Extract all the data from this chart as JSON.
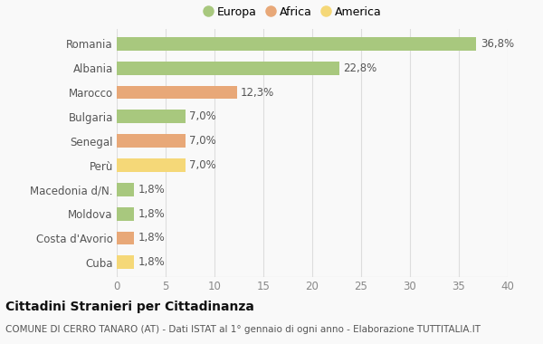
{
  "categories": [
    "Romania",
    "Albania",
    "Marocco",
    "Bulgaria",
    "Senegal",
    "Perù",
    "Macedonia d/N.",
    "Moldova",
    "Costa d'Avorio",
    "Cuba"
  ],
  "values": [
    36.8,
    22.8,
    12.3,
    7.0,
    7.0,
    7.0,
    1.8,
    1.8,
    1.8,
    1.8
  ],
  "labels": [
    "36,8%",
    "22,8%",
    "12,3%",
    "7,0%",
    "7,0%",
    "7,0%",
    "1,8%",
    "1,8%",
    "1,8%",
    "1,8%"
  ],
  "colors": [
    "#a8c87e",
    "#a8c87e",
    "#e8a878",
    "#a8c87e",
    "#e8a878",
    "#f5d878",
    "#a8c87e",
    "#a8c87e",
    "#e8a878",
    "#f5d878"
  ],
  "legend": [
    {
      "label": "Europa",
      "color": "#a8c87e"
    },
    {
      "label": "Africa",
      "color": "#e8a878"
    },
    {
      "label": "America",
      "color": "#f5d878"
    }
  ],
  "title": "Cittadini Stranieri per Cittadinanza",
  "subtitle": "COMUNE DI CERRO TANARO (AT) - Dati ISTAT al 1° gennaio di ogni anno - Elaborazione TUTTITALIA.IT",
  "xlim": [
    0,
    40
  ],
  "xticks": [
    0,
    5,
    10,
    15,
    20,
    25,
    30,
    35,
    40
  ],
  "background_color": "#f9f9f9",
  "bar_height": 0.55,
  "grid_color": "#dddddd",
  "title_fontsize": 10,
  "subtitle_fontsize": 7.5,
  "tick_fontsize": 8.5,
  "label_fontsize": 8.5
}
